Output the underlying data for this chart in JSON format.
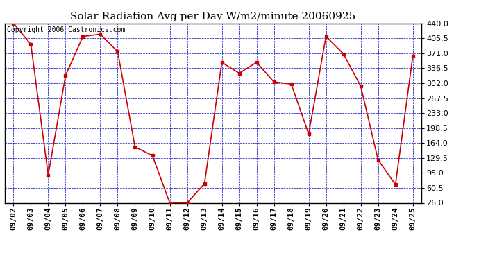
{
  "title": "Solar Radiation Avg per Day W/m2/minute 20060925",
  "copyright_text": "Copyright 2006 Castronics.com",
  "x_labels": [
    "09/02",
    "09/03",
    "09/04",
    "09/05",
    "09/06",
    "09/07",
    "09/08",
    "09/09",
    "09/10",
    "09/11",
    "09/12",
    "09/13",
    "09/14",
    "09/15",
    "09/16",
    "09/17",
    "09/18",
    "09/19",
    "09/20",
    "09/21",
    "09/22",
    "09/23",
    "09/24",
    "09/25"
  ],
  "y_values": [
    440,
    392,
    90,
    320,
    410,
    415,
    375,
    155,
    135,
    26,
    26,
    70,
    350,
    325,
    350,
    305,
    300,
    185,
    410,
    370,
    295,
    125,
    68,
    365
  ],
  "y_ticks": [
    26.0,
    60.5,
    95.0,
    129.5,
    164.0,
    198.5,
    233.0,
    267.5,
    302.0,
    336.5,
    371.0,
    405.5,
    440.0
  ],
  "y_min": 26.0,
  "y_max": 440.0,
  "line_color": "#cc0000",
  "marker_color": "#cc0000",
  "bg_color": "#ffffff",
  "plot_bg_color": "#ffffff",
  "grid_color": "#0000bb",
  "title_fontsize": 11,
  "copyright_fontsize": 7,
  "tick_fontsize": 8,
  "fig_width": 6.9,
  "fig_height": 3.75,
  "dpi": 100
}
